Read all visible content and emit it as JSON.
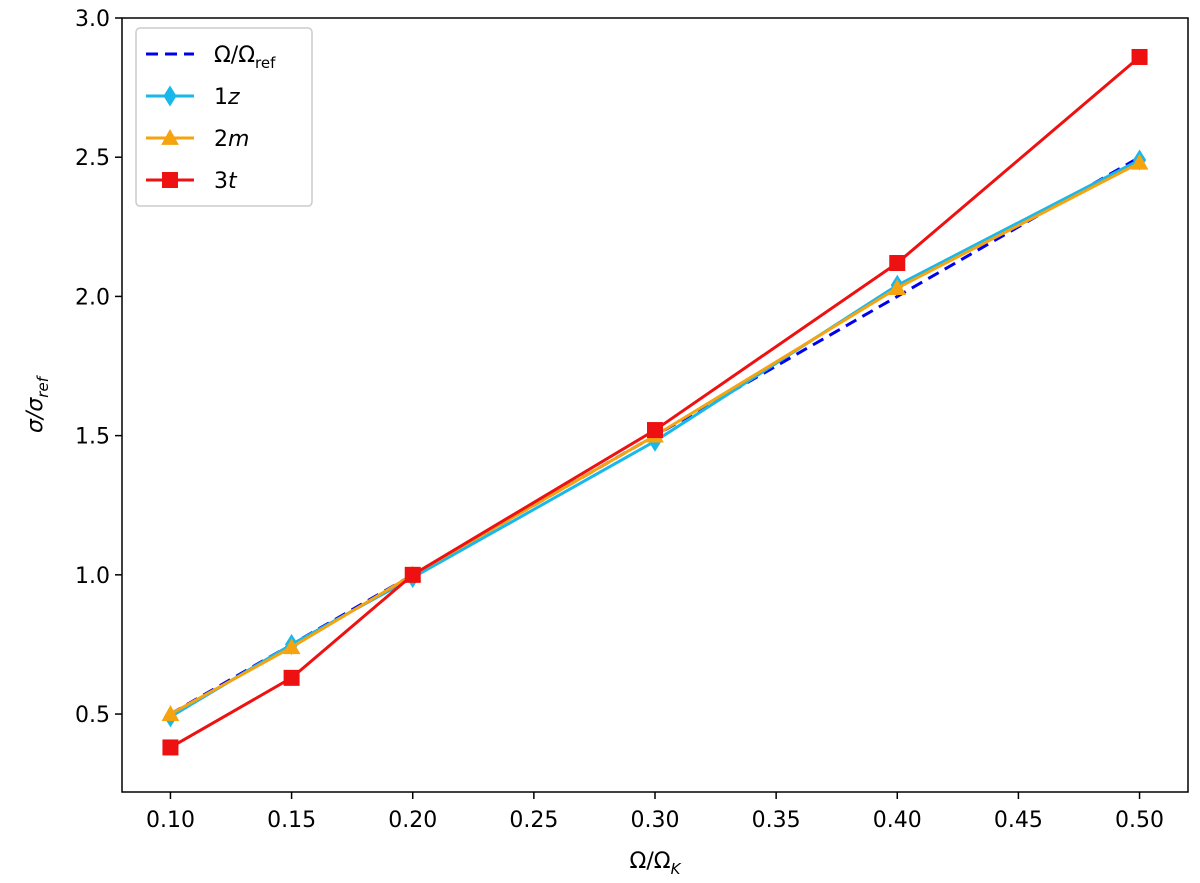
{
  "chart_data": {
    "type": "line",
    "xlabel": {
      "base": "Ω/Ω",
      "sub": "K"
    },
    "ylabel": {
      "base": "σ/σ",
      "sub": "ref"
    },
    "xlim": [
      0.08,
      0.52
    ],
    "ylim": [
      0.22,
      3.0
    ],
    "xticks": [
      0.1,
      0.15,
      0.2,
      0.25,
      0.3,
      0.35,
      0.4,
      0.45,
      0.5
    ],
    "xtick_labels": [
      "0.10",
      "0.15",
      "0.20",
      "0.25",
      "0.30",
      "0.35",
      "0.40",
      "0.45",
      "0.50"
    ],
    "yticks": [
      0.5,
      1.0,
      1.5,
      2.0,
      2.5,
      3.0
    ],
    "ytick_labels": [
      "0.5",
      "1.0",
      "1.5",
      "2.0",
      "2.5",
      "3.0"
    ],
    "grid": false,
    "legend_position": "top-left",
    "series": [
      {
        "name": {
          "base": "Ω/Ω",
          "sub": "ref",
          "italic": false
        },
        "color": "#0000ee",
        "style": "dashed",
        "marker": "none",
        "x": [
          0.1,
          0.15,
          0.2,
          0.3,
          0.4,
          0.5
        ],
        "y": [
          0.5,
          0.75,
          1.0,
          1.5,
          2.0,
          2.5
        ]
      },
      {
        "name": {
          "base": "1",
          "italic_part": "z"
        },
        "color": "#1ab8ea",
        "style": "solid",
        "marker": "diamond",
        "x": [
          0.1,
          0.15,
          0.2,
          0.3,
          0.4,
          0.5
        ],
        "y": [
          0.49,
          0.75,
          0.99,
          1.48,
          2.04,
          2.49
        ]
      },
      {
        "name": {
          "base": "2",
          "italic_part": "m"
        },
        "color": "#f5a40f",
        "style": "solid",
        "marker": "triangle",
        "x": [
          0.1,
          0.15,
          0.2,
          0.3,
          0.4,
          0.5
        ],
        "y": [
          0.5,
          0.74,
          1.0,
          1.5,
          2.03,
          2.48
        ]
      },
      {
        "name": {
          "base": "3",
          "italic_part": "t"
        },
        "color": "#ee1111",
        "style": "solid",
        "marker": "square",
        "x": [
          0.1,
          0.15,
          0.2,
          0.3,
          0.4,
          0.5
        ],
        "y": [
          0.38,
          0.63,
          1.0,
          1.52,
          2.12,
          2.86
        ]
      }
    ]
  }
}
